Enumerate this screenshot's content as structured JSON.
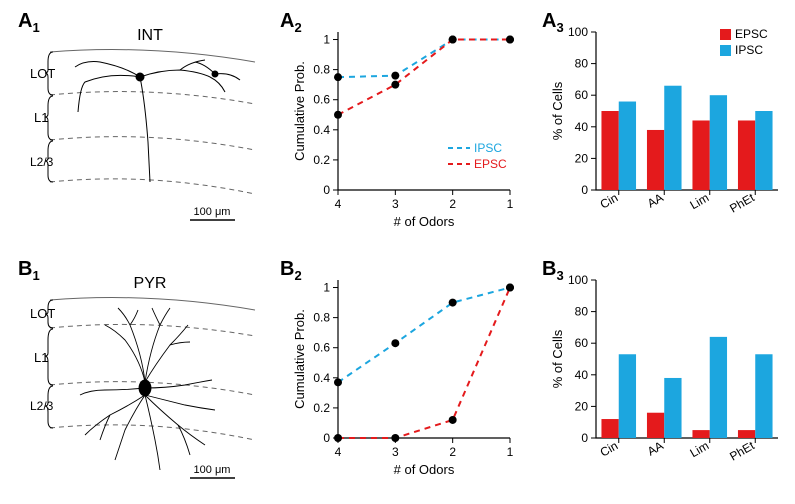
{
  "figure": {
    "background_color": "#ffffff",
    "epsc_color": "#e41a1c",
    "ipsc_color": "#1ca6df",
    "marker_color": "#000000",
    "text_color": "#000000",
    "layer_line_color": "#555555",
    "neuron_line_color": "#000000",
    "panels": {
      "A1": {
        "label_main": "A",
        "label_sub": "1",
        "title": "INT",
        "layers": [
          "LOT",
          "L1",
          "L2/3"
        ],
        "scale": "100 μm"
      },
      "B1": {
        "label_main": "B",
        "label_sub": "1",
        "title": "PYR",
        "layers": [
          "LOT",
          "L1",
          "L2/3"
        ],
        "scale": "100 μm"
      },
      "A2": {
        "label_main": "A",
        "label_sub": "2",
        "type": "line",
        "xlabel": "# of Odors",
        "ylabel": "Cumulative Prob.",
        "x_categories": [
          "4",
          "3",
          "2",
          "1"
        ],
        "yticks": [
          0,
          0.2,
          0.4,
          0.6,
          0.8,
          1
        ],
        "ylim": [
          0,
          1.05
        ],
        "series": {
          "IPSC": {
            "values": [
              0.75,
              0.76,
              1.0,
              1.0
            ],
            "color": "#1ca6df",
            "dash": true
          },
          "EPSC": {
            "values": [
              0.5,
              0.7,
              1.0,
              1.0
            ],
            "color": "#e41a1c",
            "dash": true
          }
        },
        "legend": [
          "IPSC",
          "EPSC"
        ],
        "marker_size": 4
      },
      "B2": {
        "label_main": "B",
        "label_sub": "2",
        "type": "line",
        "xlabel": "# of Odors",
        "ylabel": "Cumulative Prob.",
        "x_categories": [
          "4",
          "3",
          "2",
          "1"
        ],
        "yticks": [
          0,
          0.2,
          0.4,
          0.6,
          0.8,
          1
        ],
        "ylim": [
          0,
          1.05
        ],
        "series": {
          "IPSC": {
            "values": [
              0.37,
              0.63,
              0.9,
              1.0
            ],
            "color": "#1ca6df",
            "dash": true
          },
          "EPSC": {
            "values": [
              0.0,
              0.0,
              0.12,
              1.0
            ],
            "color": "#e41a1c",
            "dash": true
          }
        },
        "marker_size": 4
      },
      "A3": {
        "label_main": "A",
        "label_sub": "3",
        "type": "bar",
        "xlabel": "",
        "ylabel": "% of Cells",
        "categories": [
          "Cin",
          "AA",
          "Lim",
          "PhEt"
        ],
        "yticks": [
          0,
          20,
          40,
          60,
          80,
          100
        ],
        "ylim": [
          0,
          100
        ],
        "series": {
          "EPSC": {
            "values": [
              50,
              38,
              44,
              44
            ],
            "color": "#e41a1c"
          },
          "IPSC": {
            "values": [
              56,
              66,
              60,
              50
            ],
            "color": "#1ca6df"
          }
        },
        "legend": [
          "EPSC",
          "IPSC"
        ],
        "bar_width": 0.38
      },
      "B3": {
        "label_main": "B",
        "label_sub": "3",
        "type": "bar",
        "xlabel": "",
        "ylabel": "% of Cells",
        "categories": [
          "Cin",
          "AA",
          "Lim",
          "PhEt"
        ],
        "yticks": [
          0,
          20,
          40,
          60,
          80,
          100
        ],
        "ylim": [
          0,
          100
        ],
        "series": {
          "EPSC": {
            "values": [
              12,
              16,
              5,
              5
            ],
            "color": "#e41a1c"
          },
          "IPSC": {
            "values": [
              53,
              38,
              64,
              53
            ],
            "color": "#1ca6df"
          }
        },
        "bar_width": 0.38
      }
    }
  }
}
